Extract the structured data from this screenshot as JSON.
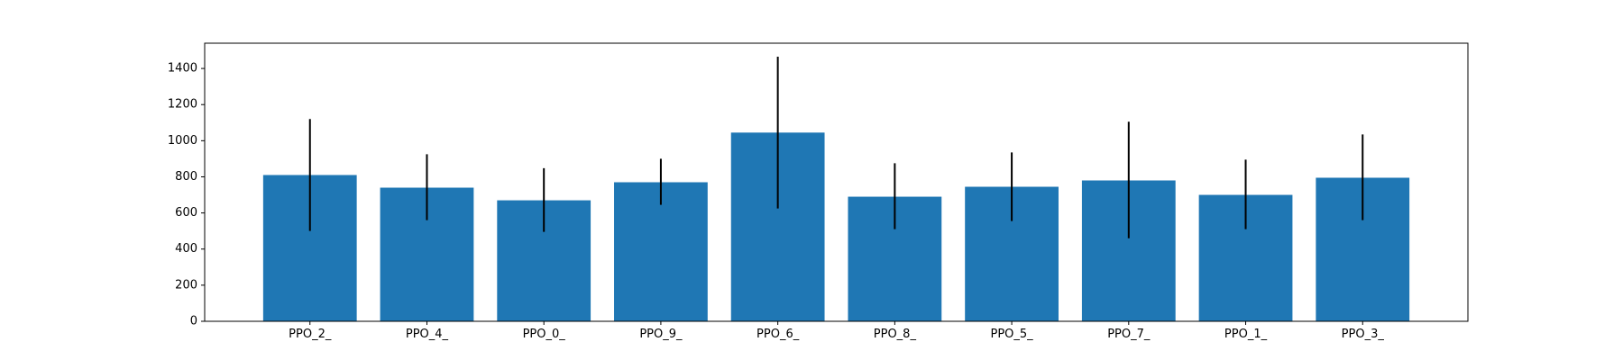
{
  "chart_data": {
    "type": "bar",
    "categories": [
      "PPO_2_",
      "PPO_4_",
      "PPO_0_",
      "PPO_9_",
      "PPO_6_",
      "PPO_8_",
      "PPO_5_",
      "PPO_7_",
      "PPO_1_",
      "PPO_3_"
    ],
    "values": [
      810,
      740,
      670,
      770,
      1045,
      690,
      745,
      780,
      700,
      795
    ],
    "error_low": [
      500,
      560,
      495,
      645,
      625,
      510,
      555,
      460,
      510,
      560
    ],
    "error_high": [
      1120,
      925,
      848,
      900,
      1465,
      875,
      935,
      1105,
      895,
      1035
    ],
    "ylim": [
      0,
      1540
    ],
    "yticks": [
      0,
      200,
      400,
      600,
      800,
      1000,
      1200,
      1400
    ],
    "title": "",
    "xlabel": "",
    "ylabel": "",
    "grid": false,
    "colors": {
      "bar": "#1f77b4",
      "error_bar": "#000000",
      "axes": "#000000"
    }
  }
}
